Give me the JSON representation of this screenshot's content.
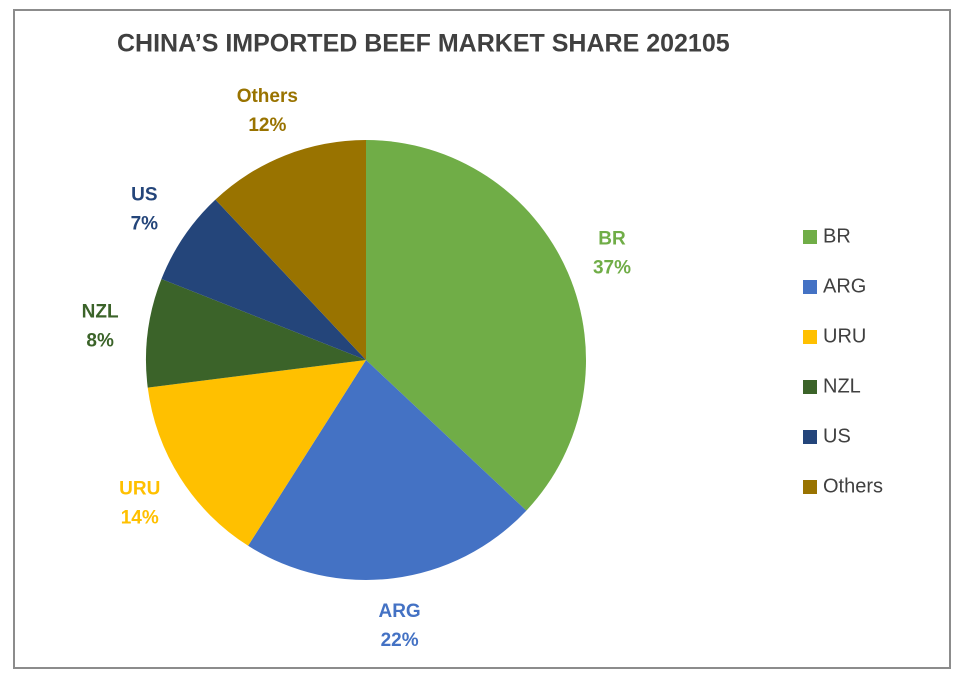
{
  "chart_data": {
    "type": "pie",
    "title": "CHINA’S IMPORTED BEEF MARKET SHARE 202105",
    "categories": [
      "BR",
      "ARG",
      "URU",
      "NZL",
      "US",
      "Others"
    ],
    "values": [
      37,
      22,
      14,
      8,
      7,
      12
    ],
    "value_labels": [
      "37%",
      "22%",
      "14%",
      "8%",
      "7%",
      "12%"
    ],
    "colors": [
      "#70ad47",
      "#4472c4",
      "#ffc000",
      "#3b6329",
      "#24457a",
      "#997300"
    ],
    "legend": "right"
  }
}
